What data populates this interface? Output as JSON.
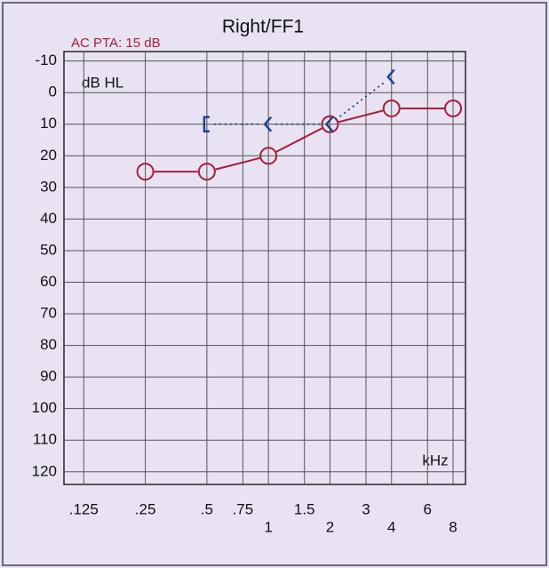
{
  "chart_data": {
    "type": "audiogram",
    "title": "Right/FF1",
    "subtitle": "AC PTA: 15 dB",
    "y_label": "dB HL",
    "x_label": "kHz",
    "x_scale": "log",
    "y_inverted": true,
    "grid": true,
    "xlim": [
      0.1,
      9.2
    ],
    "xticks": [
      {
        "value": 0.125,
        "label": ".125"
      },
      {
        "value": 0.25,
        "label": ".25"
      },
      {
        "value": 0.5,
        "label": ".5"
      },
      {
        "value": 0.75,
        "label": ".75"
      },
      1,
      1.5,
      2,
      3,
      4,
      6,
      8
    ],
    "ylim": [
      -13,
      124
    ],
    "yticks": [
      -10,
      0,
      10,
      20,
      30,
      40,
      50,
      60,
      70,
      80,
      90,
      100,
      110,
      120
    ],
    "series": [
      {
        "color": "#a3203a",
        "line": "solid",
        "markers": [
          "circle",
          "circle",
          "circle",
          "circle",
          "circle",
          "circle"
        ],
        "x": [
          0.25,
          0.5,
          1,
          2,
          4,
          8
        ],
        "values": [
          25,
          25,
          20,
          10,
          5,
          5
        ]
      },
      {
        "color": "#1d3f8f",
        "line": "dotted",
        "markers": [
          "bracket",
          "chevron",
          "chevron",
          "chevron"
        ],
        "x": [
          0.5,
          1,
          2,
          4
        ],
        "values": [
          10,
          10,
          10,
          -5
        ]
      }
    ]
  }
}
